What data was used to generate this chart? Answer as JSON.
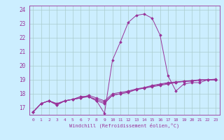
{
  "xlabel": "Windchill (Refroidissement éolien,°C)",
  "background_color": "#cceeff",
  "grid_color": "#aacccc",
  "line_color": "#993399",
  "xlim": [
    -0.5,
    23.5
  ],
  "ylim": [
    16.5,
    24.3
  ],
  "yticks": [
    17,
    18,
    19,
    20,
    21,
    22,
    23,
    24
  ],
  "xticks": [
    0,
    1,
    2,
    3,
    4,
    5,
    6,
    7,
    8,
    9,
    10,
    11,
    12,
    13,
    14,
    15,
    16,
    17,
    18,
    19,
    20,
    21,
    22,
    23
  ],
  "series": [
    {
      "x": [
        0,
        1,
        2,
        3,
        4,
        5,
        6,
        7,
        8,
        9,
        10,
        11,
        12,
        13,
        14,
        15,
        16,
        17,
        18,
        19,
        20,
        21,
        22,
        23
      ],
      "y": [
        16.7,
        17.3,
        17.5,
        17.2,
        17.5,
        17.6,
        17.8,
        17.8,
        17.5,
        16.6,
        20.4,
        21.7,
        23.1,
        23.6,
        23.7,
        23.4,
        22.2,
        19.3,
        18.2,
        18.7,
        18.8,
        18.8,
        19.0,
        19.0
      ]
    },
    {
      "x": [
        0,
        1,
        2,
        3,
        4,
        5,
        6,
        7,
        8,
        9,
        10,
        11,
        12,
        13,
        14,
        15,
        16,
        17,
        18,
        19,
        20,
        21,
        22,
        23
      ],
      "y": [
        16.7,
        17.3,
        17.5,
        17.2,
        17.5,
        17.6,
        17.8,
        17.8,
        17.5,
        17.3,
        17.9,
        18.0,
        18.1,
        18.3,
        18.4,
        18.5,
        18.6,
        18.7,
        18.8,
        18.9,
        18.9,
        19.0,
        19.0,
        19.0
      ]
    },
    {
      "x": [
        0,
        1,
        2,
        3,
        4,
        5,
        6,
        7,
        8,
        9,
        10,
        11,
        12,
        13,
        14,
        15,
        16,
        17,
        18,
        19,
        20,
        21,
        22,
        23
      ],
      "y": [
        16.7,
        17.3,
        17.5,
        17.3,
        17.5,
        17.6,
        17.7,
        17.8,
        17.6,
        17.4,
        17.9,
        18.0,
        18.15,
        18.3,
        18.42,
        18.55,
        18.65,
        18.75,
        18.82,
        18.87,
        18.92,
        18.96,
        19.0,
        19.0
      ]
    },
    {
      "x": [
        0,
        1,
        2,
        3,
        4,
        5,
        6,
        7,
        8,
        9,
        10,
        11,
        12,
        13,
        14,
        15,
        16,
        17,
        18,
        19,
        20,
        21,
        22,
        23
      ],
      "y": [
        16.7,
        17.3,
        17.5,
        17.3,
        17.5,
        17.6,
        17.7,
        17.9,
        17.7,
        17.5,
        18.0,
        18.1,
        18.2,
        18.35,
        18.45,
        18.6,
        18.7,
        18.8,
        18.85,
        18.9,
        18.95,
        19.0,
        19.0,
        19.05
      ]
    }
  ]
}
